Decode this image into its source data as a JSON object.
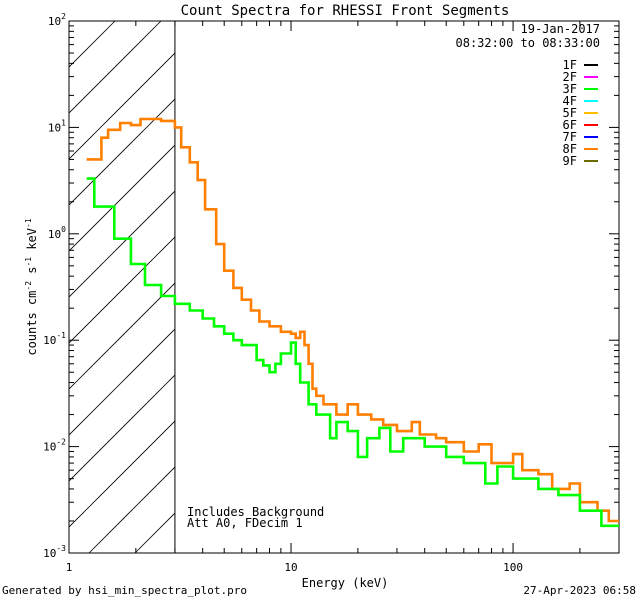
{
  "chart_data": {
    "type": "line",
    "title": "Count Spectra for RHESSI Front Segments",
    "xlabel": "Energy (keV)",
    "ylabel_parts": [
      "counts cm",
      "-2",
      " s",
      "-1",
      " keV",
      "-1"
    ],
    "xscale": "log",
    "yscale": "log",
    "xlim": [
      1,
      300
    ],
    "ylim": [
      0.001,
      100
    ],
    "x_ticks": [
      {
        "v": 1,
        "label": "1"
      },
      {
        "v": 10,
        "label": "10"
      },
      {
        "v": 100,
        "label": "100"
      }
    ],
    "y_ticks": [
      {
        "v": 0.001,
        "base": "10",
        "exp": "-3"
      },
      {
        "v": 0.01,
        "base": "10",
        "exp": "-2"
      },
      {
        "v": 0.1,
        "base": "10",
        "exp": "-1"
      },
      {
        "v": 1,
        "base": "10",
        "exp": "0"
      },
      {
        "v": 10,
        "base": "10",
        "exp": "1"
      },
      {
        "v": 100,
        "base": "10",
        "exp": "2"
      }
    ],
    "threshold_keV": 3,
    "annotations": {
      "date": "19-Jan-2017",
      "time_range": "08:32:00 to 08:33:00",
      "note1": "Includes Background",
      "note2": "Att A0, FDecim 1"
    },
    "legend": [
      {
        "name": "1F",
        "color": "#000000"
      },
      {
        "name": "2F",
        "color": "#ff00ff"
      },
      {
        "name": "3F",
        "color": "#00ff00"
      },
      {
        "name": "4F",
        "color": "#00ffff"
      },
      {
        "name": "5F",
        "color": "#ffbf00"
      },
      {
        "name": "6F",
        "color": "#ff0000"
      },
      {
        "name": "7F",
        "color": "#0000ff"
      },
      {
        "name": "8F",
        "color": "#ff7f00"
      },
      {
        "name": "9F",
        "color": "#6b6b00"
      }
    ],
    "series": [
      {
        "name": "8F",
        "color": "#ff7f00",
        "points": [
          [
            1.2,
            5.0
          ],
          [
            1.4,
            5.0
          ],
          [
            1.4,
            8.0
          ],
          [
            1.5,
            8.0
          ],
          [
            1.5,
            9.5
          ],
          [
            1.7,
            9.5
          ],
          [
            1.7,
            11.0
          ],
          [
            1.9,
            11.0
          ],
          [
            1.9,
            10.5
          ],
          [
            2.1,
            10.5
          ],
          [
            2.1,
            12.0
          ],
          [
            2.6,
            12.0
          ],
          [
            2.6,
            11.5
          ],
          [
            3.0,
            11.5
          ],
          [
            3.0,
            10.0
          ],
          [
            3.2,
            10.0
          ],
          [
            3.2,
            6.5
          ],
          [
            3.5,
            6.5
          ],
          [
            3.5,
            4.7
          ],
          [
            3.8,
            4.7
          ],
          [
            3.8,
            3.2
          ],
          [
            4.1,
            3.2
          ],
          [
            4.1,
            1.7
          ],
          [
            4.6,
            1.7
          ],
          [
            4.6,
            0.8
          ],
          [
            5.0,
            0.8
          ],
          [
            5.0,
            0.45
          ],
          [
            5.5,
            0.45
          ],
          [
            5.5,
            0.31
          ],
          [
            6.0,
            0.31
          ],
          [
            6.0,
            0.24
          ],
          [
            6.6,
            0.24
          ],
          [
            6.6,
            0.19
          ],
          [
            7.2,
            0.19
          ],
          [
            7.2,
            0.15
          ],
          [
            8.0,
            0.15
          ],
          [
            8.0,
            0.135
          ],
          [
            9.0,
            0.135
          ],
          [
            9.0,
            0.12
          ],
          [
            10.0,
            0.12
          ],
          [
            10.0,
            0.115
          ],
          [
            10.5,
            0.115
          ],
          [
            10.5,
            0.105
          ],
          [
            11.0,
            0.105
          ],
          [
            11.0,
            0.12
          ],
          [
            11.5,
            0.12
          ],
          [
            11.5,
            0.09
          ],
          [
            12.0,
            0.09
          ],
          [
            12.0,
            0.06
          ],
          [
            12.5,
            0.06
          ],
          [
            12.5,
            0.035
          ],
          [
            13.0,
            0.035
          ],
          [
            13.0,
            0.03
          ],
          [
            14.0,
            0.03
          ],
          [
            14.0,
            0.025
          ],
          [
            16.0,
            0.025
          ],
          [
            16.0,
            0.02
          ],
          [
            18.0,
            0.02
          ],
          [
            18.0,
            0.025
          ],
          [
            20.0,
            0.025
          ],
          [
            20.0,
            0.02
          ],
          [
            23.0,
            0.02
          ],
          [
            23.0,
            0.018
          ],
          [
            26.0,
            0.018
          ],
          [
            26.0,
            0.016
          ],
          [
            30.0,
            0.016
          ],
          [
            30.0,
            0.014
          ],
          [
            35.0,
            0.014
          ],
          [
            35.0,
            0.017
          ],
          [
            38.0,
            0.017
          ],
          [
            38.0,
            0.013
          ],
          [
            45.0,
            0.013
          ],
          [
            45.0,
            0.012
          ],
          [
            50.0,
            0.012
          ],
          [
            50.0,
            0.011
          ],
          [
            60.0,
            0.011
          ],
          [
            60.0,
            0.009
          ],
          [
            70.0,
            0.009
          ],
          [
            70.0,
            0.0105
          ],
          [
            80.0,
            0.0105
          ],
          [
            80.0,
            0.007
          ],
          [
            100.0,
            0.007
          ],
          [
            100.0,
            0.0085
          ],
          [
            110.0,
            0.0085
          ],
          [
            110.0,
            0.006
          ],
          [
            130.0,
            0.006
          ],
          [
            130.0,
            0.0055
          ],
          [
            150.0,
            0.0055
          ],
          [
            150.0,
            0.004
          ],
          [
            180.0,
            0.004
          ],
          [
            180.0,
            0.0045
          ],
          [
            200.0,
            0.0045
          ],
          [
            200.0,
            0.003
          ],
          [
            240.0,
            0.003
          ],
          [
            240.0,
            0.0025
          ],
          [
            270.0,
            0.0025
          ],
          [
            270.0,
            0.002
          ],
          [
            300.0,
            0.002
          ]
        ]
      },
      {
        "name": "3F",
        "color": "#00ff00",
        "points": [
          [
            1.2,
            3.3
          ],
          [
            1.3,
            3.3
          ],
          [
            1.3,
            1.8
          ],
          [
            1.6,
            1.8
          ],
          [
            1.6,
            0.9
          ],
          [
            1.9,
            0.9
          ],
          [
            1.9,
            0.52
          ],
          [
            2.2,
            0.52
          ],
          [
            2.2,
            0.33
          ],
          [
            2.6,
            0.33
          ],
          [
            2.6,
            0.26
          ],
          [
            3.0,
            0.26
          ],
          [
            3.0,
            0.22
          ],
          [
            3.5,
            0.22
          ],
          [
            3.5,
            0.19
          ],
          [
            4.0,
            0.19
          ],
          [
            4.0,
            0.16
          ],
          [
            4.5,
            0.16
          ],
          [
            4.5,
            0.135
          ],
          [
            5.0,
            0.135
          ],
          [
            5.0,
            0.115
          ],
          [
            5.5,
            0.115
          ],
          [
            5.5,
            0.1
          ],
          [
            6.0,
            0.1
          ],
          [
            6.0,
            0.09
          ],
          [
            7.0,
            0.09
          ],
          [
            7.0,
            0.065
          ],
          [
            7.5,
            0.065
          ],
          [
            7.5,
            0.058
          ],
          [
            8.0,
            0.058
          ],
          [
            8.0,
            0.05
          ],
          [
            8.5,
            0.05
          ],
          [
            8.5,
            0.06
          ],
          [
            9.0,
            0.06
          ],
          [
            9.0,
            0.075
          ],
          [
            10.0,
            0.075
          ],
          [
            10.0,
            0.095
          ],
          [
            10.5,
            0.095
          ],
          [
            10.5,
            0.06
          ],
          [
            11.0,
            0.06
          ],
          [
            11.0,
            0.04
          ],
          [
            12.0,
            0.04
          ],
          [
            12.0,
            0.025
          ],
          [
            13.0,
            0.025
          ],
          [
            13.0,
            0.02
          ],
          [
            15.0,
            0.02
          ],
          [
            15.0,
            0.012
          ],
          [
            16.0,
            0.012
          ],
          [
            16.0,
            0.017
          ],
          [
            18.0,
            0.017
          ],
          [
            18.0,
            0.014
          ],
          [
            20.0,
            0.014
          ],
          [
            20.0,
            0.008
          ],
          [
            22.0,
            0.008
          ],
          [
            22.0,
            0.012
          ],
          [
            25.0,
            0.012
          ],
          [
            25.0,
            0.015
          ],
          [
            28.0,
            0.015
          ],
          [
            28.0,
            0.009
          ],
          [
            32.0,
            0.009
          ],
          [
            32.0,
            0.012
          ],
          [
            40.0,
            0.012
          ],
          [
            40.0,
            0.01
          ],
          [
            50.0,
            0.01
          ],
          [
            50.0,
            0.008
          ],
          [
            60.0,
            0.008
          ],
          [
            60.0,
            0.007
          ],
          [
            75.0,
            0.007
          ],
          [
            75.0,
            0.0045
          ],
          [
            85.0,
            0.0045
          ],
          [
            85.0,
            0.0065
          ],
          [
            100.0,
            0.0065
          ],
          [
            100.0,
            0.005
          ],
          [
            130.0,
            0.005
          ],
          [
            130.0,
            0.004
          ],
          [
            160.0,
            0.004
          ],
          [
            160.0,
            0.0035
          ],
          [
            200.0,
            0.0035
          ],
          [
            200.0,
            0.0025
          ],
          [
            250.0,
            0.0025
          ],
          [
            250.0,
            0.0018
          ],
          [
            300.0,
            0.0018
          ]
        ]
      }
    ]
  },
  "footer": {
    "left": "Generated by hsi_min_spectra_plot.pro",
    "right": "27-Apr-2023 06:58"
  }
}
